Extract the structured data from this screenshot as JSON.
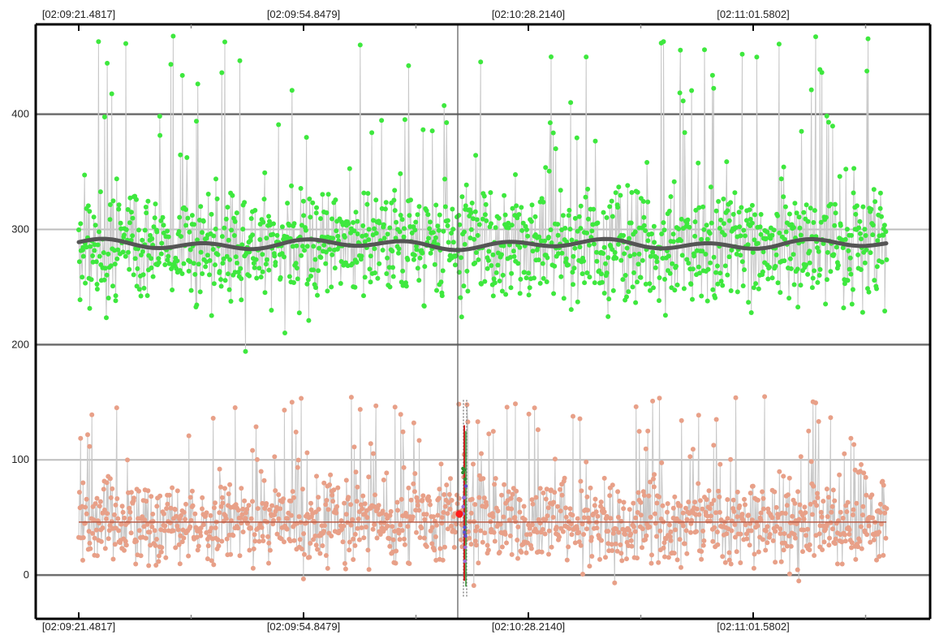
{
  "chart_data": {
    "type": "scatter",
    "title": "",
    "xlabel": "",
    "ylabel": "",
    "x_ticks": [
      "[02:09:21.4817]",
      "[02:09:54.8479]",
      "[02:10:28.2140]",
      "[02:11:01.5802]"
    ],
    "y_ticks": [
      0,
      100,
      200,
      300,
      400
    ],
    "ylim": [
      -38,
      478
    ],
    "grid": true,
    "legend": "none",
    "series": [
      {
        "color": "#3ee83e",
        "band": [
          185,
          470
        ],
        "center": 287,
        "trend_color": "#555555"
      },
      {
        "color": "#e8a088",
        "band": [
          -15,
          155
        ],
        "center": 46,
        "mean_line_color": "#b85a45"
      }
    ],
    "cursor": {
      "time": "[02:10:17.4]"
    },
    "marker": {
      "y": 53,
      "color": "#ff1a1a"
    }
  }
}
